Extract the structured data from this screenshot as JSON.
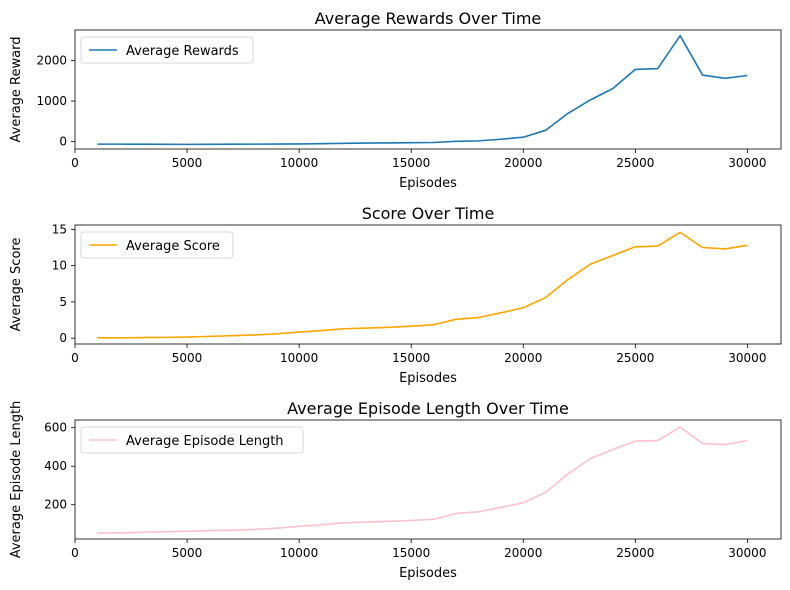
{
  "chart_data": [
    {
      "type": "line",
      "title": "Average Rewards Over Time",
      "xlabel": "Episodes",
      "ylabel": "Average Reward",
      "xlim": [
        0,
        31500
      ],
      "ylim": [
        -180,
        2750
      ],
      "x_ticks": [
        0,
        5000,
        10000,
        15000,
        20000,
        25000,
        30000
      ],
      "y_ticks": [
        0,
        1000,
        2000
      ],
      "legend": "top-left",
      "grid": false,
      "series": [
        {
          "name": "Average Rewards",
          "color": "#1f77b4",
          "x": [
            1000,
            2000,
            3000,
            4000,
            5000,
            6000,
            7000,
            8000,
            9000,
            10000,
            11000,
            12000,
            13000,
            14000,
            15000,
            16000,
            17000,
            18000,
            19000,
            20000,
            21000,
            22000,
            23000,
            24000,
            25000,
            26000,
            27000,
            28000,
            29000,
            30000
          ],
          "values": [
            -60,
            -60,
            -62,
            -64,
            -66,
            -64,
            -62,
            -60,
            -58,
            -55,
            -50,
            -40,
            -35,
            -30,
            -25,
            -20,
            10,
            20,
            60,
            110,
            280,
            700,
            1030,
            1310,
            1780,
            1800,
            2610,
            1640,
            1560,
            1630
          ]
        }
      ]
    },
    {
      "type": "line",
      "title": "Score Over Time",
      "xlabel": "Episodes",
      "ylabel": "Average Score",
      "xlim": [
        0,
        31500
      ],
      "ylim": [
        -0.8,
        15.6
      ],
      "x_ticks": [
        0,
        5000,
        10000,
        15000,
        20000,
        25000,
        30000
      ],
      "y_ticks": [
        0,
        5,
        10,
        15
      ],
      "legend": "top-left",
      "grid": false,
      "series": [
        {
          "name": "Average Score",
          "color": "#ffa500",
          "x": [
            1000,
            2000,
            3000,
            4000,
            5000,
            6000,
            7000,
            8000,
            9000,
            10000,
            11000,
            12000,
            13000,
            14000,
            15000,
            16000,
            17000,
            18000,
            19000,
            20000,
            21000,
            22000,
            23000,
            24000,
            25000,
            26000,
            27000,
            28000,
            29000,
            30000
          ],
          "values": [
            0.05,
            0.05,
            0.08,
            0.1,
            0.15,
            0.25,
            0.35,
            0.45,
            0.6,
            0.85,
            1.05,
            1.3,
            1.4,
            1.5,
            1.65,
            1.85,
            2.6,
            2.85,
            3.5,
            4.2,
            5.6,
            8.1,
            10.2,
            11.4,
            12.6,
            12.7,
            14.6,
            12.5,
            12.3,
            12.8
          ]
        }
      ]
    },
    {
      "type": "line",
      "title": "Average Episode Length Over Time",
      "xlabel": "Episodes",
      "ylabel": "Average Episode Length",
      "xlim": [
        0,
        31500
      ],
      "ylim": [
        22,
        640
      ],
      "x_ticks": [
        0,
        5000,
        10000,
        15000,
        20000,
        25000,
        30000
      ],
      "y_ticks": [
        200,
        400,
        600
      ],
      "legend": "top-left",
      "grid": false,
      "series": [
        {
          "name": "Average Episode Length",
          "color": "#ffc0cb",
          "x": [
            1000,
            2000,
            3000,
            4000,
            5000,
            6000,
            7000,
            8000,
            9000,
            10000,
            11000,
            12000,
            13000,
            14000,
            15000,
            16000,
            17000,
            18000,
            19000,
            20000,
            21000,
            22000,
            23000,
            24000,
            25000,
            26000,
            27000,
            28000,
            29000,
            30000
          ],
          "values": [
            52,
            54,
            57,
            60,
            62,
            65,
            68,
            72,
            78,
            88,
            96,
            106,
            110,
            114,
            118,
            124,
            155,
            163,
            186,
            210,
            265,
            360,
            440,
            487,
            530,
            533,
            603,
            518,
            512,
            533
          ]
        }
      ]
    }
  ]
}
